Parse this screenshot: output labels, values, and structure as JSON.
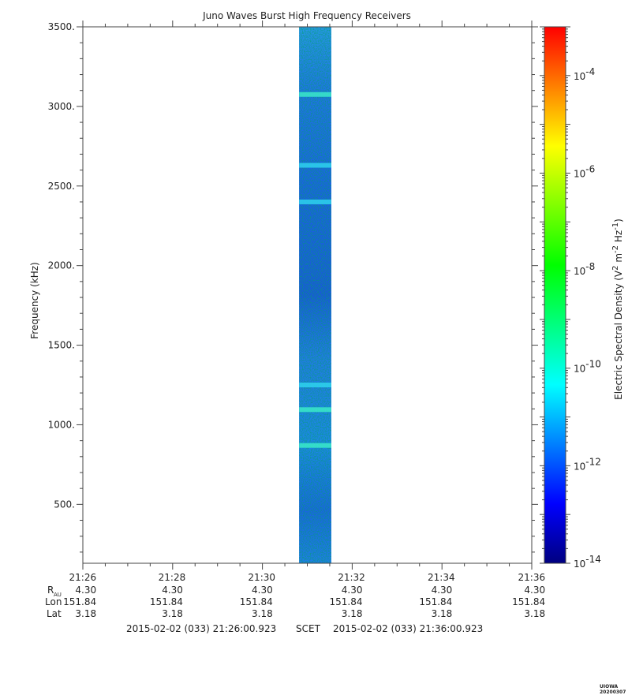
{
  "chart_data": {
    "type": "heatmap",
    "title": "Juno Waves Burst High Frequency Receivers",
    "ylabel": "Frequency (kHz)",
    "y_ticks": [
      "3500.",
      "3000.",
      "2500.",
      "2000.",
      "1500.",
      "1000.",
      "500."
    ],
    "y_tick_values": [
      3500,
      3000,
      2500,
      2000,
      1500,
      1000,
      500
    ],
    "ylim": [
      130,
      3500
    ],
    "x_ticks": [
      "21:26",
      "21:28",
      "21:30",
      "21:32",
      "21:34",
      "21:36"
    ],
    "xlim": [
      "21:26:00.923",
      "21:36:00.923"
    ],
    "data_interval": [
      "21:30:50",
      "21:31:33"
    ],
    "intensity_bands_khz": [
      {
        "f": 3075,
        "level": "high"
      },
      {
        "f": 2630,
        "level": "medium"
      },
      {
        "f": 2400,
        "level": "medium"
      },
      {
        "f": 1250,
        "level": "medium"
      },
      {
        "f": 1095,
        "level": "high"
      },
      {
        "f": 870,
        "level": "high"
      }
    ],
    "colorbar": {
      "label_prefix": "Electric Spectral Density (V",
      "label_sup1": "2",
      "label_mid": " m",
      "label_sup2": "-2",
      "label_mid2": " Hz",
      "label_sup3": "-1",
      "label_suffix": ")",
      "scale": "log",
      "range": [
        1e-14,
        0.001
      ],
      "ticks": [
        {
          "value": 0.0001,
          "mantissa": "10",
          "exp": "-4"
        },
        {
          "value": 1e-06,
          "mantissa": "10",
          "exp": "-6"
        },
        {
          "value": 1e-08,
          "mantissa": "10",
          "exp": "-8"
        },
        {
          "value": 1e-10,
          "mantissa": "10",
          "exp": "-10"
        },
        {
          "value": 1e-12,
          "mantissa": "10",
          "exp": "-12"
        },
        {
          "value": 1e-14,
          "mantissa": "10",
          "exp": "-14"
        }
      ],
      "colors": [
        "#000080",
        "#0000ff",
        "#0080ff",
        "#00ffff",
        "#00ff80",
        "#00ff00",
        "#80ff00",
        "#ffff00",
        "#ff8000",
        "#ff0000"
      ]
    },
    "ephemeris": {
      "row_labels": {
        "r": "R",
        "r_sub": "AU",
        "lon": "Lon",
        "lat": "Lat"
      },
      "r": [
        "4.30",
        "4.30",
        "4.30",
        "4.30",
        "4.30",
        "4.30"
      ],
      "lon": [
        "151.84",
        "151.84",
        "151.84",
        "151.84",
        "151.84",
        "151.84"
      ],
      "lat": [
        "3.18",
        "3.18",
        "3.18",
        "3.18",
        "3.18",
        "3.18"
      ]
    },
    "time_range": {
      "start": "2015-02-02 (033) 21:26:00.923",
      "label": "SCET",
      "end": "2015-02-02 (033) 21:36:00.923"
    },
    "grid": false
  },
  "footer": {
    "credit": "UIOWA 20200307"
  }
}
